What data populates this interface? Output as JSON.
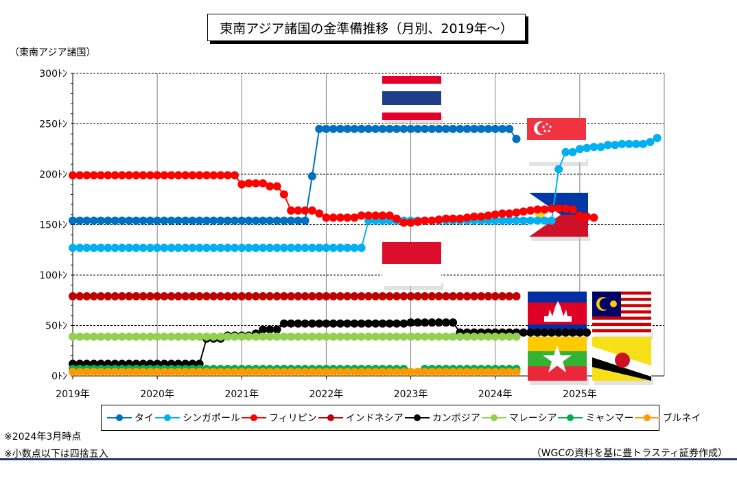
{
  "title": "東南アジア諸国の金準備推移（月別、2019年～）",
  "unit_label": "（東南アジア諸国）",
  "notes": [
    "※2024年3月時点",
    "※小数点以下は四捨五入"
  ],
  "source": "（WGCの資料を基に豊トラスティ証券作成）",
  "chart_data": {
    "type": "line",
    "x_start": "2019-01",
    "x_end": "2024-03",
    "xlim": [
      "2019-01",
      "2026-01"
    ],
    "xticks": [
      {
        "value": "2019-01",
        "label": "2019年"
      },
      {
        "value": "2020-01",
        "label": "2020年"
      },
      {
        "value": "2021-01",
        "label": "2021年"
      },
      {
        "value": "2022-01",
        "label": "2022年"
      },
      {
        "value": "2023-01",
        "label": "2023年"
      },
      {
        "value": "2024-01",
        "label": "2024年"
      },
      {
        "value": "2025-01",
        "label": "2025年"
      }
    ],
    "ylim": [
      0,
      300
    ],
    "yticks": [
      {
        "value": 0,
        "label": "0ﾄﾝ"
      },
      {
        "value": 50,
        "label": "50ﾄﾝ"
      },
      {
        "value": 100,
        "label": "100ﾄﾝ"
      },
      {
        "value": 150,
        "label": "150ﾄﾝ"
      },
      {
        "value": 200,
        "label": "200ﾄﾝ"
      },
      {
        "value": 250,
        "label": "250ﾄﾝ"
      },
      {
        "value": 300,
        "label": "300ﾄﾝ"
      }
    ],
    "grid": true,
    "series": [
      {
        "name": "タイ",
        "color": "#0070c0",
        "segments": [
          {
            "start": "2019-01",
            "values": [
              154,
              154,
              154,
              154,
              154,
              154,
              154,
              154,
              154,
              154,
              154,
              154,
              154,
              154,
              154,
              154,
              154,
              154,
              154,
              154,
              154,
              154,
              154,
              154,
              154,
              154,
              154,
              154,
              154,
              154,
              154,
              154,
              154,
              154,
              198,
              245,
              245,
              245,
              245,
              245,
              245,
              245,
              245,
              245,
              245,
              245,
              245,
              245,
              245,
              245,
              245,
              245,
              245,
              245,
              245,
              245,
              245,
              245,
              245,
              245,
              245,
              245,
              245,
              235
            ]
          }
        ]
      },
      {
        "name": "シンガポール",
        "color": "#00b0f0",
        "segments": [
          {
            "start": "2019-01",
            "values": [
              127,
              127,
              127,
              127,
              127,
              127,
              127,
              127,
              127,
              127,
              127,
              127,
              127,
              127,
              127,
              127,
              127,
              127,
              127,
              127,
              127,
              127,
              127,
              127,
              127,
              127,
              127,
              127,
              127,
              127,
              127,
              127,
              127,
              127,
              127,
              127,
              127,
              127,
              127,
              127,
              127,
              127,
              154,
              154,
              154,
              154,
              154,
              154,
              154,
              154,
              154,
              154,
              154,
              154,
              154,
              154,
              154,
              154,
              154,
              154,
              154,
              154,
              154,
              154,
              154,
              154,
              154,
              154,
              154,
              205,
              222,
              222,
              225,
              226,
              227,
              227,
              229,
              229,
              230,
              230,
              230,
              230,
              232,
              236
            ]
          }
        ]
      },
      {
        "name": "フィリピン",
        "color": "#ff0000",
        "segments": [
          {
            "start": "2019-01",
            "values": [
              199,
              199,
              199,
              199,
              199,
              199,
              199,
              199,
              199,
              199,
              199,
              199,
              199,
              199,
              199,
              199,
              199,
              199,
              199,
              199,
              199,
              199,
              199,
              199,
              190,
              191,
              191,
              191,
              188,
              188,
              180,
              164,
              164,
              164,
              164,
              161,
              157,
              157,
              157,
              157,
              157,
              159,
              159,
              159,
              159,
              159,
              156,
              152,
              152,
              153,
              154,
              154,
              155,
              156,
              156,
              156,
              157,
              158,
              158,
              159,
              160,
              161,
              161,
              162,
              163,
              164,
              165,
              165,
              166,
              166,
              166,
              165,
              159,
              158,
              157
            ]
          }
        ]
      },
      {
        "name": "インドネシア",
        "color": "#c00000",
        "segments": [
          {
            "start": "2019-01",
            "values": [
              79,
              79,
              79,
              79,
              79,
              79,
              79,
              79,
              79,
              79,
              79,
              79,
              79,
              79,
              79,
              79,
              79,
              79,
              79,
              79,
              79,
              79,
              79,
              79,
              79,
              79,
              79,
              79,
              79,
              79,
              79,
              79,
              79,
              79,
              79,
              79,
              79,
              79,
              79,
              79,
              79,
              79,
              79,
              79,
              79,
              79,
              79,
              79,
              79,
              79,
              79,
              79,
              79,
              79,
              79,
              79,
              79,
              79,
              79,
              79,
              79,
              79,
              79,
              79
            ]
          }
        ]
      },
      {
        "name": "カンボジア",
        "color": "#000000",
        "segments": [
          {
            "start": "2019-01",
            "values": [
              12,
              12,
              12,
              12,
              12,
              12,
              12,
              12,
              12,
              12,
              12,
              12,
              12,
              12,
              12,
              12,
              12,
              12,
              12,
              37,
              37,
              37,
              40,
              40,
              40,
              40,
              42,
              46,
              46,
              46,
              52,
              52,
              52,
              52,
              52,
              52,
              52,
              52,
              52,
              52,
              52,
              52,
              52,
              52,
              52,
              52,
              52,
              52,
              53,
              53,
              53,
              53,
              53,
              53,
              53,
              43,
              43,
              43,
              43,
              43,
              43,
              43,
              43,
              43,
              43,
              43,
              43,
              43,
              43,
              43,
              43,
              43,
              43,
              43
            ]
          }
        ]
      },
      {
        "name": "マレーシア",
        "color": "#92d050",
        "segments": [
          {
            "start": "2019-01",
            "values": [
              39,
              39,
              39,
              39,
              39,
              39,
              39,
              39,
              39,
              39,
              39,
              39,
              39,
              39,
              39,
              39,
              39,
              39,
              39,
              39,
              39,
              39,
              39,
              39,
              39,
              39,
              39,
              39,
              39,
              39,
              39,
              39,
              39,
              39,
              39,
              39,
              39,
              39,
              39,
              39,
              39,
              39,
              39,
              39,
              39,
              39,
              39,
              39,
              39,
              39,
              39,
              39,
              39,
              39,
              39,
              39,
              39,
              39,
              39,
              39,
              39,
              39,
              39,
              39
            ]
          }
        ]
      },
      {
        "name": "ミャンマー",
        "color": "#00b050",
        "segments": [
          {
            "start": "2019-01",
            "values": [
              7,
              7,
              7,
              7,
              7,
              7,
              7,
              7,
              7,
              7,
              7,
              7,
              7,
              7,
              7,
              7,
              7,
              7,
              7,
              7,
              7,
              7,
              7,
              7,
              7,
              7,
              7,
              7,
              7,
              7,
              7,
              7,
              7,
              7,
              7,
              7,
              7,
              7,
              7,
              7,
              7,
              7,
              7,
              7,
              7,
              7,
              7,
              7
            ]
          },
          {
            "start": "2023-03",
            "values": [
              7,
              7,
              7,
              7,
              7,
              7,
              7,
              7,
              7,
              7,
              7,
              7,
              7,
              7
            ]
          }
        ]
      },
      {
        "name": "ブルネイ",
        "color": "#ff9900",
        "segments": [
          {
            "start": "2019-01",
            "values": [
              4,
              4,
              4,
              4,
              4,
              4,
              4,
              4,
              4,
              4,
              4,
              4,
              4,
              4,
              4,
              4,
              4,
              4,
              4,
              4,
              4,
              4,
              4,
              4,
              4,
              4,
              4,
              4,
              4,
              4,
              4,
              4,
              4,
              4,
              4,
              4,
              4,
              4,
              4,
              4,
              4,
              4,
              4,
              4,
              4,
              4,
              4,
              4,
              4,
              4,
              4,
              4,
              4,
              4,
              4,
              4,
              4,
              4
            ]
          },
          {
            "start": "2023-01",
            "values": [
              4,
              4,
              4,
              4,
              4,
              4,
              4,
              4,
              4,
              4,
              4,
              4,
              4,
              4,
              4,
              4
            ]
          }
        ]
      }
    ]
  },
  "flags": [
    {
      "country": "thailand",
      "icon": "thailand-flag-icon"
    },
    {
      "country": "singapore",
      "icon": "singapore-flag-icon"
    },
    {
      "country": "philippines",
      "icon": "philippines-flag-icon"
    },
    {
      "country": "indonesia",
      "icon": "indonesia-flag-icon"
    },
    {
      "country": "cambodia",
      "icon": "cambodia-flag-icon"
    },
    {
      "country": "malaysia",
      "icon": "malaysia-flag-icon"
    },
    {
      "country": "myanmar",
      "icon": "myanmar-flag-icon"
    },
    {
      "country": "brunei",
      "icon": "brunei-flag-icon"
    }
  ]
}
